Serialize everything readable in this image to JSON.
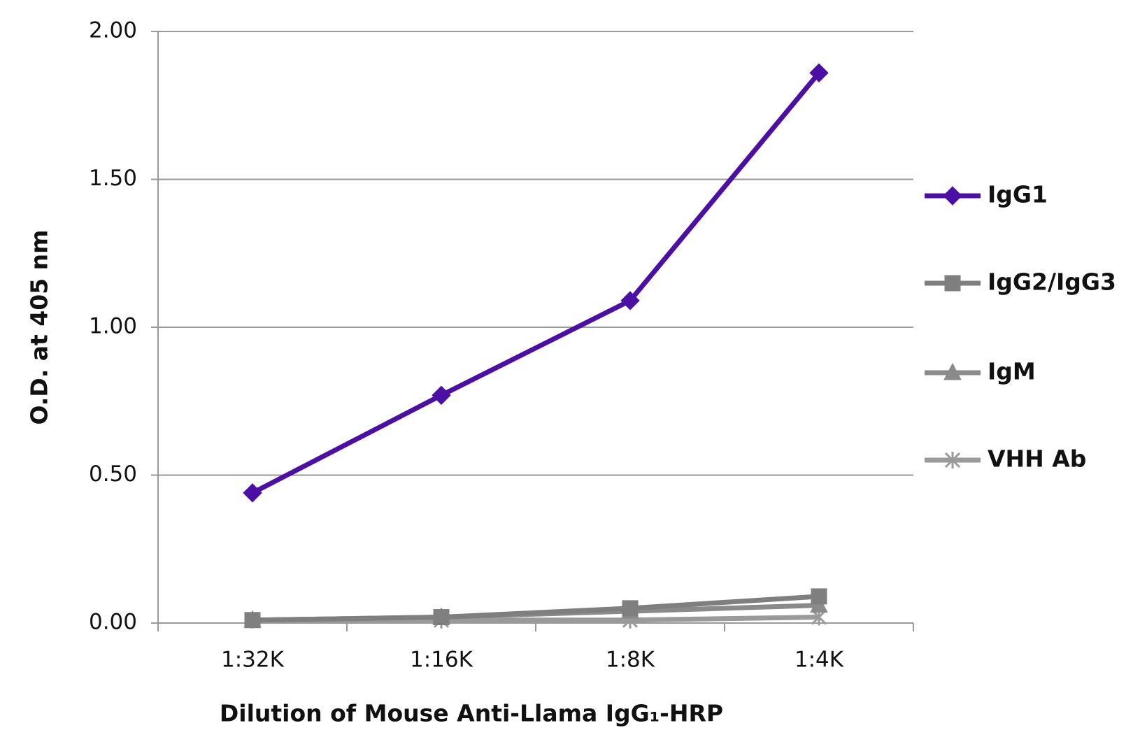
{
  "chart_data": {
    "type": "line",
    "x_label": "Dilution of Mouse Anti-Llama IgG₁-HRP",
    "y_label": "O.D. at 405 nm",
    "categories": [
      "1:32K",
      "1:16K",
      "1:8K",
      "1:4K"
    ],
    "series": [
      {
        "name": "IgG1",
        "color": "#4b0fa6",
        "marker": "diamond",
        "values": [
          0.44,
          0.77,
          1.09,
          1.86
        ]
      },
      {
        "name": "IgG2/IgG3",
        "color": "#7f7f7f",
        "marker": "square",
        "values": [
          0.01,
          0.02,
          0.05,
          0.09
        ]
      },
      {
        "name": "IgM",
        "color": "#8a8a8a",
        "marker": "triangle",
        "values": [
          0.01,
          0.02,
          0.04,
          0.06
        ]
      },
      {
        "name": "VHH Ab",
        "color": "#9a9a9a",
        "marker": "star",
        "values": [
          0.01,
          0.01,
          0.01,
          0.02
        ]
      }
    ],
    "ylim": [
      0,
      2
    ],
    "yticks": [
      {
        "value": 0,
        "label": "0.00"
      },
      {
        "value": 0.5,
        "label": "0.50"
      },
      {
        "value": 1,
        "label": "1.00"
      },
      {
        "value": 1.5,
        "label": "1.50"
      },
      {
        "value": 2,
        "label": "2.00"
      }
    ],
    "grid": true,
    "legend": "right"
  }
}
